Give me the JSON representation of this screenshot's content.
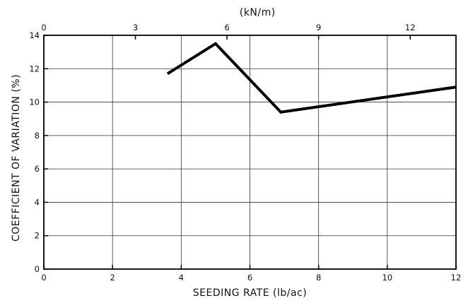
{
  "chart_data": {
    "type": "line",
    "xlabel": "SEEDING RATE (lb/ac)",
    "ylabel": "COEFFICIENT OF VARIATION (%)",
    "x2label": "(kN/m)",
    "xlim": [
      0,
      12
    ],
    "ylim": [
      0,
      14
    ],
    "x2lim": [
      0,
      13.5
    ],
    "xticks": [
      0,
      2,
      4,
      6,
      8,
      10,
      12
    ],
    "yticks": [
      0,
      2,
      4,
      6,
      8,
      10,
      12,
      14
    ],
    "x2ticks": [
      0,
      3,
      6,
      9,
      12
    ],
    "grid": true,
    "series": [
      {
        "x": [
          3.6,
          5.0,
          6.9,
          12.0
        ],
        "y": [
          11.7,
          13.5,
          9.4,
          10.9
        ]
      }
    ]
  }
}
